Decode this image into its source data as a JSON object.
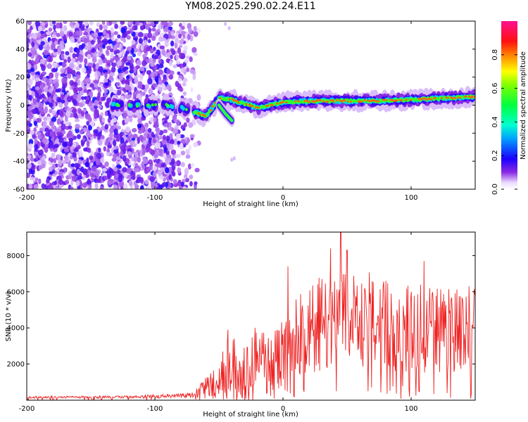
{
  "title": "YM08.2025.290.02.24.E11",
  "charts": [
    {
      "type": "heatmap",
      "xlabel": "Height of straight line (km)",
      "ylabel": "Frequency (Hz)",
      "xlim": [
        -200,
        150
      ],
      "ylim": [
        -60,
        60
      ],
      "xticks": [
        -200,
        -100,
        0,
        100
      ],
      "yticks": [
        -60,
        -40,
        -20,
        0,
        20,
        40,
        60
      ],
      "colorbar": {
        "label": "Normalized spectral amplitude",
        "range": [
          0.0,
          1.0
        ],
        "ticks": [
          "0.0",
          "0.2",
          "0.4",
          "0.6",
          "0.8"
        ],
        "colormap": "rainbow (violet → blue → cyan → green → yellow → red → magenta)"
      },
      "noise_region": {
        "x_start": -200,
        "x_end": -70,
        "freq_range": [
          -60,
          60
        ],
        "amplitude": "low (0.0-0.3), dense scatter"
      },
      "signal_track": [
        {
          "x": -130,
          "y": 0
        },
        {
          "x": -110,
          "y": 0
        },
        {
          "x": -90,
          "y": 0
        },
        {
          "x": -75,
          "y": -3
        },
        {
          "x": -60,
          "y": -8
        },
        {
          "x": -50,
          "y": 5
        },
        {
          "x": -40,
          "y": 4
        },
        {
          "x": -20,
          "y": -2
        },
        {
          "x": 0,
          "y": 2
        },
        {
          "x": 25,
          "y": 3
        },
        {
          "x": 50,
          "y": 3
        },
        {
          "x": 75,
          "y": 3
        },
        {
          "x": 100,
          "y": 4
        },
        {
          "x": 125,
          "y": 5
        },
        {
          "x": 150,
          "y": 6
        }
      ],
      "branch_track": [
        {
          "x": -50,
          "y": 0
        },
        {
          "x": -45,
          "y": -6
        },
        {
          "x": -40,
          "y": -11
        }
      ]
    },
    {
      "type": "line",
      "xlabel": "Height of straight line (km)",
      "ylabel": "SNR (10 * v/v)",
      "xlim": [
        -200,
        150
      ],
      "ylim": [
        0,
        9300
      ],
      "xticks": [
        -200,
        -100,
        0,
        100
      ],
      "yticks": [
        2000,
        4000,
        6000,
        8000
      ],
      "series": [
        {
          "name": "SNR",
          "color": "#ee2222",
          "envelope": [
            {
              "x": -200,
              "base": 150,
              "amp": 80
            },
            {
              "x": -120,
              "base": 170,
              "amp": 90
            },
            {
              "x": -70,
              "base": 250,
              "amp": 200
            },
            {
              "x": -60,
              "base": 600,
              "amp": 800
            },
            {
              "x": -50,
              "base": 900,
              "amp": 1200
            },
            {
              "x": -43,
              "base": 1500,
              "amp": 2500
            },
            {
              "x": -30,
              "base": 1200,
              "amp": 2000
            },
            {
              "x": -25,
              "base": 1800,
              "amp": 2800
            },
            {
              "x": -10,
              "base": 1600,
              "amp": 2400
            },
            {
              "x": 0,
              "base": 2800,
              "amp": 2600
            },
            {
              "x": 20,
              "base": 3600,
              "amp": 3200
            },
            {
              "x": 40,
              "base": 4200,
              "amp": 3600
            },
            {
              "x": 60,
              "base": 4300,
              "amp": 3400
            },
            {
              "x": 80,
              "base": 4000,
              "amp": 3200
            },
            {
              "x": 100,
              "base": 3800,
              "amp": 3200
            },
            {
              "x": 120,
              "base": 3600,
              "amp": 3000
            },
            {
              "x": 150,
              "base": 3700,
              "amp": 2800
            }
          ],
          "peaks": [
            {
              "x": -43,
              "y": 3900
            },
            {
              "x": 4,
              "y": 7400
            },
            {
              "x": 37,
              "y": 8400
            },
            {
              "x": 45,
              "y": 9300
            },
            {
              "x": 50,
              "y": 8300
            },
            {
              "x": 110,
              "y": 7700
            },
            {
              "x": 145,
              "y": 6300
            }
          ]
        }
      ]
    }
  ]
}
